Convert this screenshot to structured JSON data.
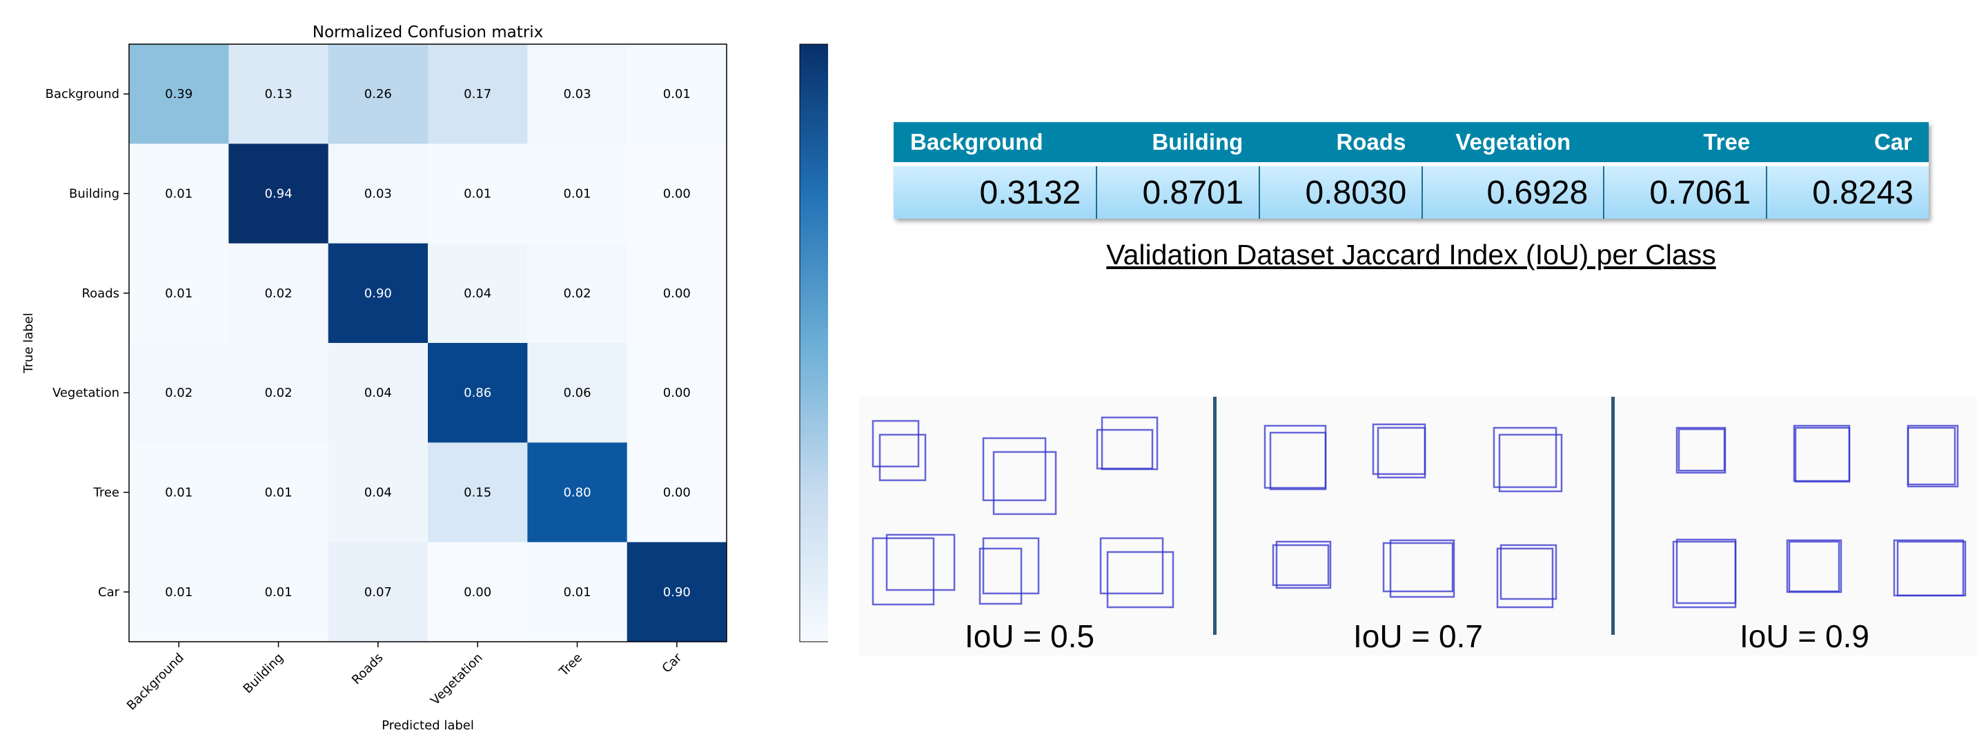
{
  "chart_data": {
    "type": "heatmap",
    "title": "Normalized Confusion matrix",
    "xlabel": "Predicted label",
    "ylabel": "True label",
    "categories": [
      "Background",
      "Building",
      "Roads",
      "Vegetation",
      "Tree",
      "Car"
    ],
    "values": [
      [
        "0.39",
        "0.13",
        "0.26",
        "0.17",
        "0.03",
        "0.01"
      ],
      [
        "0.01",
        "0.94",
        "0.03",
        "0.01",
        "0.01",
        "0.00"
      ],
      [
        "0.01",
        "0.02",
        "0.90",
        "0.04",
        "0.02",
        "0.00"
      ],
      [
        "0.02",
        "0.02",
        "0.04",
        "0.86",
        "0.06",
        "0.00"
      ],
      [
        "0.01",
        "0.01",
        "0.04",
        "0.15",
        "0.80",
        "0.00"
      ],
      [
        "0.01",
        "0.01",
        "0.07",
        "0.00",
        "0.01",
        "0.90"
      ]
    ],
    "colormap": "Blues",
    "colorbar_ticks": [
      "0.8",
      "0.6",
      "0.4",
      "0.2"
    ],
    "colorbar_tick_values": [
      0.8,
      0.6,
      0.4,
      0.2
    ],
    "colorbar_range": [
      0,
      0.94
    ]
  },
  "iou_table": {
    "headers": [
      "Background",
      "Building",
      "Roads",
      "Vegetation",
      "Tree",
      "Car"
    ],
    "values": [
      "0.3132",
      "0.8701",
      "0.8030",
      "0.6928",
      "0.7061",
      "0.8243"
    ],
    "caption": "Validation Dataset Jaccard Index (IoU) per Class",
    "header_color": "#0085a8"
  },
  "iou_examples": {
    "labels": [
      "IoU = 0.5",
      "IoU = 0.7",
      "IoU = 0.9"
    ],
    "box_color": "#3333cc"
  }
}
